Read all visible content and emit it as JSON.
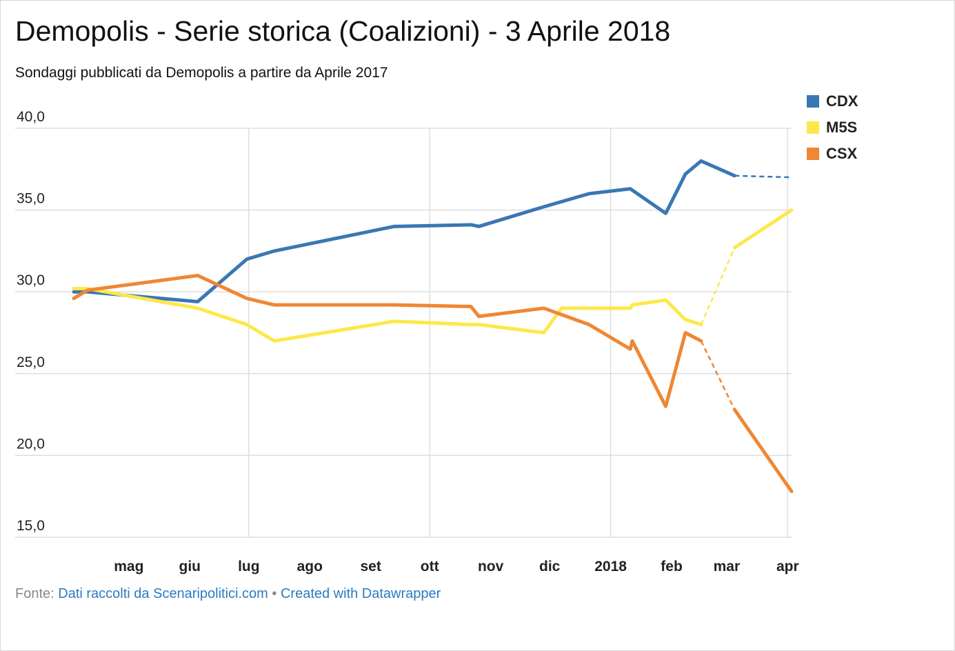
{
  "title": "Demopolis - Serie storica (Coalizioni) - 3 Aprile 2018",
  "subtitle": "Sondaggi pubblicati da Demopolis a partire da Aprile 2017",
  "footer": {
    "prefix": "Fonte:",
    "source_label": "Dati raccolti da Scenaripolitici.com",
    "separator": "•",
    "credit_label": "Created with Datawrapper"
  },
  "colors": {
    "CDX": "#3a76b3",
    "M5S": "#fce84a",
    "CSX": "#ef8733",
    "grid": "#dddddd",
    "link": "#2a7bc0"
  },
  "chart_data": {
    "type": "line",
    "x_axis": "time",
    "xlim": [
      "2017-04-03",
      "2018-04-03"
    ],
    "ylim": [
      15,
      40
    ],
    "yticks": [
      15,
      20,
      25,
      30,
      35,
      40
    ],
    "ytick_labels": [
      "15,0",
      "20,0",
      "25,0",
      "30,0",
      "35,0",
      "40,0"
    ],
    "xtick_labels": [
      {
        "label": "mag",
        "date": "2017-05-01"
      },
      {
        "label": "giu",
        "date": "2017-06-01"
      },
      {
        "label": "lug",
        "date": "2017-07-01"
      },
      {
        "label": "ago",
        "date": "2017-08-01"
      },
      {
        "label": "set",
        "date": "2017-09-01"
      },
      {
        "label": "ott",
        "date": "2017-10-01"
      },
      {
        "label": "nov",
        "date": "2017-11-01"
      },
      {
        "label": "dic",
        "date": "2017-12-01"
      },
      {
        "label": "2018",
        "date": "2018-01-01"
      },
      {
        "label": "feb",
        "date": "2018-02-01"
      },
      {
        "label": "mar",
        "date": "2018-03-01"
      },
      {
        "label": "apr",
        "date": "2018-04-01"
      }
    ],
    "grid_dates": [
      "2017-07-01",
      "2017-10-01",
      "2018-01-01",
      "2018-04-01"
    ],
    "legend_position": "top-right",
    "series": [
      {
        "name": "CDX",
        "points": [
          {
            "x": "2017-04-03",
            "y": 30.0
          },
          {
            "x": "2017-04-10",
            "y": 30.0
          },
          {
            "x": "2017-06-05",
            "y": 29.4
          },
          {
            "x": "2017-06-30",
            "y": 32.0
          },
          {
            "x": "2017-07-14",
            "y": 32.5
          },
          {
            "x": "2017-09-13",
            "y": 34.0
          },
          {
            "x": "2017-10-22",
            "y": 34.1
          },
          {
            "x": "2017-10-26",
            "y": 34.0
          },
          {
            "x": "2017-11-28",
            "y": 35.2
          },
          {
            "x": "2017-12-21",
            "y": 36.0
          },
          {
            "x": "2018-01-11",
            "y": 36.3
          },
          {
            "x": "2018-01-29",
            "y": 34.8
          },
          {
            "x": "2018-02-08",
            "y": 37.2
          },
          {
            "x": "2018-02-16",
            "y": 38.0
          },
          {
            "x": "2018-03-05",
            "y": 37.1
          },
          {
            "x": "2018-04-03",
            "y": 37.0
          }
        ],
        "dashed_segments": [
          [
            14,
            15
          ]
        ]
      },
      {
        "name": "M5S",
        "points": [
          {
            "x": "2017-04-03",
            "y": 30.2
          },
          {
            "x": "2017-04-10",
            "y": 30.2
          },
          {
            "x": "2017-06-05",
            "y": 29.0
          },
          {
            "x": "2017-06-30",
            "y": 28.0
          },
          {
            "x": "2017-07-14",
            "y": 27.0
          },
          {
            "x": "2017-09-13",
            "y": 28.2
          },
          {
            "x": "2017-10-22",
            "y": 28.0
          },
          {
            "x": "2017-10-26",
            "y": 28.0
          },
          {
            "x": "2017-11-28",
            "y": 27.5
          },
          {
            "x": "2017-12-07",
            "y": 29.0
          },
          {
            "x": "2018-01-11",
            "y": 29.0
          },
          {
            "x": "2018-01-12",
            "y": 29.2
          },
          {
            "x": "2018-01-29",
            "y": 29.5
          },
          {
            "x": "2018-02-08",
            "y": 28.3
          },
          {
            "x": "2018-02-16",
            "y": 28.0
          },
          {
            "x": "2018-03-05",
            "y": 32.7
          },
          {
            "x": "2018-04-03",
            "y": 35.0
          }
        ],
        "dashed_segments": [
          [
            14,
            15
          ]
        ]
      },
      {
        "name": "CSX",
        "points": [
          {
            "x": "2017-04-03",
            "y": 29.6
          },
          {
            "x": "2017-04-10",
            "y": 30.1
          },
          {
            "x": "2017-06-05",
            "y": 31.0
          },
          {
            "x": "2017-06-30",
            "y": 29.6
          },
          {
            "x": "2017-07-14",
            "y": 29.2
          },
          {
            "x": "2017-09-13",
            "y": 29.2
          },
          {
            "x": "2017-10-22",
            "y": 29.1
          },
          {
            "x": "2017-10-26",
            "y": 28.5
          },
          {
            "x": "2017-11-28",
            "y": 29.0
          },
          {
            "x": "2017-12-21",
            "y": 28.0
          },
          {
            "x": "2018-01-11",
            "y": 26.5
          },
          {
            "x": "2018-01-12",
            "y": 27.0
          },
          {
            "x": "2018-01-29",
            "y": 23.0
          },
          {
            "x": "2018-02-08",
            "y": 27.5
          },
          {
            "x": "2018-02-16",
            "y": 27.0
          },
          {
            "x": "2018-03-05",
            "y": 22.8
          },
          {
            "x": "2018-04-03",
            "y": 17.8
          }
        ],
        "dashed_segments": [
          [
            14,
            15
          ]
        ]
      }
    ]
  }
}
